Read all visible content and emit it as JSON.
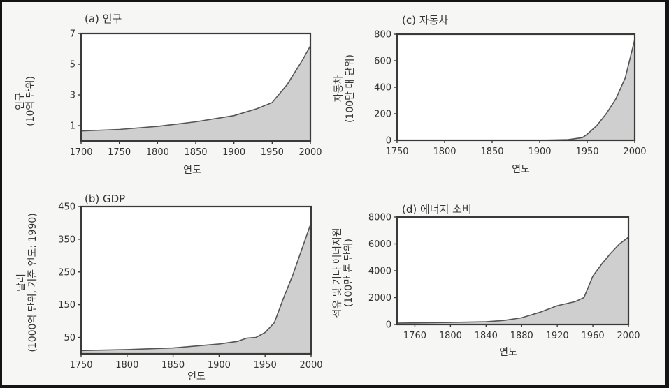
{
  "chart_data": [
    {
      "type": "area",
      "title": "(a) 인구",
      "xlabel": "연도",
      "ylabel": [
        "인구",
        "(10억 단위)"
      ],
      "xlim": [
        1700,
        2000
      ],
      "ylim": [
        0,
        7
      ],
      "xticks": [
        1700,
        1750,
        1800,
        1850,
        1900,
        1950,
        2000
      ],
      "xtick_labels": [
        "1700",
        "1750",
        "1800",
        "1850",
        "1900",
        "1950",
        "2000"
      ],
      "yticks": [
        1,
        3,
        5,
        7
      ],
      "ytick_labels": [
        "1",
        "3",
        "5",
        "7"
      ],
      "x": [
        1700,
        1750,
        1800,
        1850,
        1900,
        1930,
        1950,
        1970,
        1990,
        2000
      ],
      "y": [
        0.65,
        0.75,
        0.95,
        1.25,
        1.65,
        2.1,
        2.5,
        3.7,
        5.3,
        6.2
      ],
      "grid": false
    },
    {
      "type": "area",
      "title": "(c) 자동차",
      "xlabel": "연도",
      "ylabel": [
        "자동차",
        "(100만 대 단위)"
      ],
      "xlim": [
        1750,
        2000
      ],
      "ylim": [
        0,
        800
      ],
      "xticks": [
        1750,
        1800,
        1850,
        1900,
        1950,
        2000
      ],
      "xtick_labels": [
        "1750",
        "1800",
        "1850",
        "1900",
        "1950",
        "2000"
      ],
      "yticks": [
        0,
        200,
        400,
        600,
        800
      ],
      "ytick_labels": [
        "0",
        "200",
        "400",
        "600",
        "800"
      ],
      "x": [
        1750,
        1900,
        1930,
        1945,
        1950,
        1960,
        1970,
        1980,
        1990,
        2000
      ],
      "y": [
        0,
        0,
        5,
        20,
        45,
        110,
        200,
        310,
        470,
        760
      ],
      "grid": false
    },
    {
      "type": "area",
      "title": "(b) GDP",
      "xlabel": "연도",
      "ylabel": [
        "달러",
        "(1000억 단위, 기준 연도: 1990)"
      ],
      "xlim": [
        1750,
        2000
      ],
      "ylim": [
        0,
        450
      ],
      "xticks": [
        1750,
        1800,
        1850,
        1900,
        1950,
        2000
      ],
      "xtick_labels": [
        "1750",
        "1800",
        "1850",
        "1900",
        "1950",
        "2000"
      ],
      "yticks": [
        50,
        150,
        250,
        350,
        450
      ],
      "ytick_labels": [
        "50",
        "150",
        "250",
        "350",
        "450"
      ],
      "x": [
        1750,
        1800,
        1850,
        1900,
        1920,
        1930,
        1940,
        1950,
        1960,
        1970,
        1980,
        1990,
        2000
      ],
      "y": [
        10,
        13,
        18,
        30,
        38,
        48,
        50,
        65,
        95,
        170,
        240,
        320,
        400
      ],
      "grid": false
    },
    {
      "type": "area",
      "title": "(d) 에너지 소비",
      "xlabel": "연도",
      "ylabel": [
        "석유 및 기타 에너지원",
        "(100만 톤 단위)"
      ],
      "xlim": [
        1740,
        2000
      ],
      "ylim": [
        0,
        8000
      ],
      "xticks": [
        1760,
        1800,
        1840,
        1880,
        1920,
        1960,
        2000
      ],
      "xtick_labels": [
        "1760",
        "1800",
        "1840",
        "1880",
        "1920",
        "1960",
        "2000"
      ],
      "yticks": [
        0,
        2000,
        4000,
        6000,
        8000
      ],
      "ytick_labels": [
        "0",
        "2000",
        "4000",
        "6000",
        "8000"
      ],
      "x": [
        1740,
        1800,
        1840,
        1860,
        1880,
        1900,
        1920,
        1940,
        1950,
        1960,
        1970,
        1980,
        1990,
        2000
      ],
      "y": [
        100,
        150,
        200,
        300,
        500,
        900,
        1400,
        1700,
        2000,
        3600,
        4500,
        5300,
        6000,
        6500
      ],
      "grid": false
    }
  ]
}
